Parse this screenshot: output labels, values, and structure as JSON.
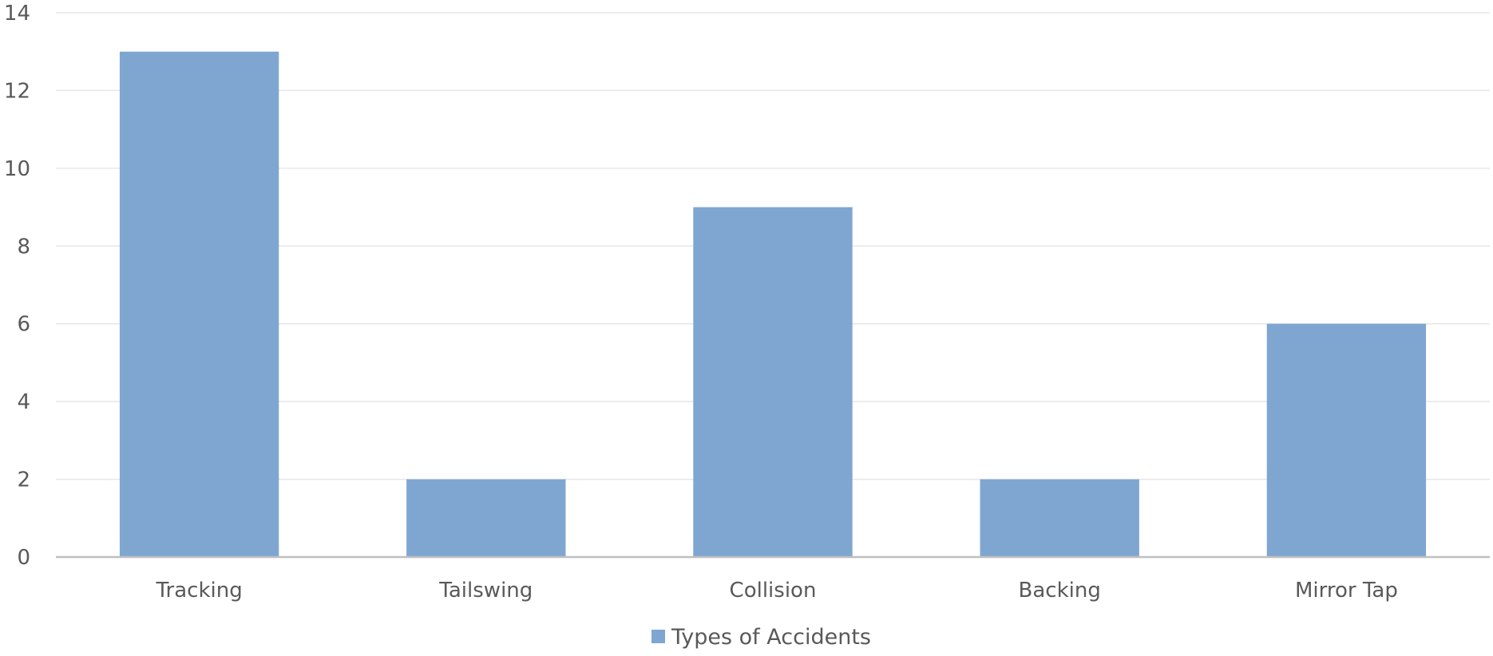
{
  "chart_data": {
    "type": "bar",
    "categories": [
      "Tracking",
      "Tailswing",
      "Collision",
      "Backing",
      "Mirror Tap"
    ],
    "series": [
      {
        "name": "Types of Accidents",
        "values": [
          13,
          2,
          9,
          2,
          6
        ]
      }
    ],
    "ylim": [
      0,
      14
    ],
    "yticks": [
      0,
      2,
      4,
      6,
      8,
      10,
      12,
      14
    ],
    "grid": true,
    "legend_position": "bottom",
    "bar_color": "#7fa6d0",
    "title": "",
    "xlabel": "",
    "ylabel": ""
  }
}
